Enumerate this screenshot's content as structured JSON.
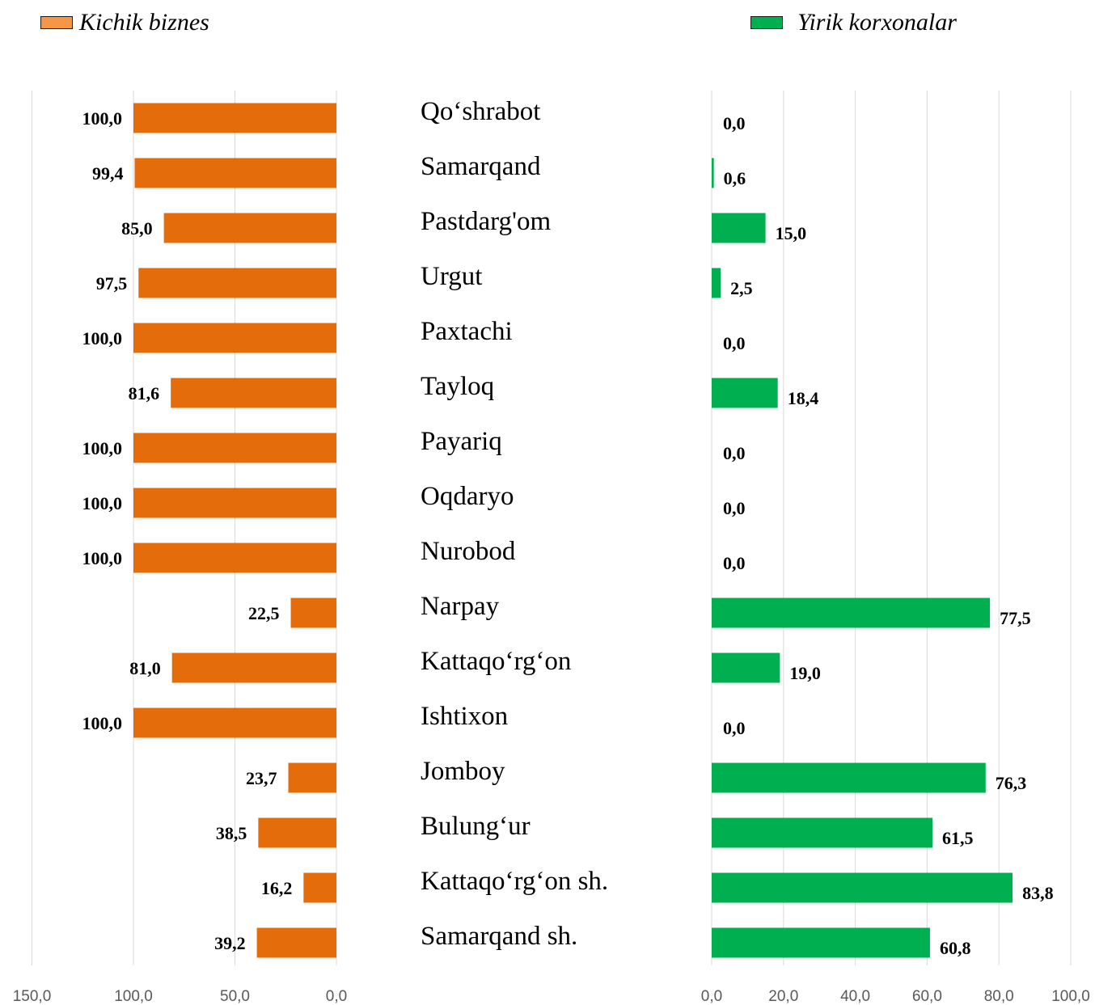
{
  "chart_data": {
    "type": "bar",
    "categories": [
      "Qo‘shrabot",
      "Samarqand",
      "Pastdarg'om",
      "Urgut",
      "Paxtachi",
      "Tayloq",
      "Payariq",
      "Oqdaryo",
      "Nurobod",
      "Narpay",
      "Kattaqo‘rg‘on",
      "Ishtixon",
      "Jomboy",
      "Bulung‘ur",
      "Kattaqo‘rg‘on sh.",
      "Samarqand sh."
    ],
    "series": [
      {
        "name": "Kichik biznes",
        "color": "#E46C0A",
        "swatch_color": "#F79646",
        "values": [
          100.0,
          99.4,
          85.0,
          97.5,
          100.0,
          81.6,
          100.0,
          100.0,
          100.0,
          22.5,
          81.0,
          100.0,
          23.7,
          38.5,
          16.2,
          39.2
        ],
        "labels": [
          "100,0",
          "99,4",
          "85,0",
          "97,5",
          "100,0",
          "81,6",
          "100,0",
          "100,0",
          "100,0",
          "22,5",
          "81,0",
          "100,0",
          "23,7",
          "38,5",
          "16,2",
          "39,2"
        ],
        "xlim": [
          0,
          150
        ],
        "direction": "reversed",
        "ticks": [
          "150,0",
          "100,0",
          "50,0",
          "0,0"
        ]
      },
      {
        "name": "Yirik korxonalar",
        "color": "#00B050",
        "swatch_color": "#00B050",
        "values": [
          0.0,
          0.6,
          15.0,
          2.5,
          0.0,
          18.4,
          0.0,
          0.0,
          0.0,
          77.5,
          19.0,
          0.0,
          76.3,
          61.5,
          83.8,
          60.8
        ],
        "labels": [
          "0,0",
          "0,6",
          "15,0",
          "2,5",
          "0,0",
          "18,4",
          "0,0",
          "0,0",
          "0,0",
          "77,5",
          "19,0",
          "0,0",
          "76,3",
          "61,5",
          "83,8",
          "60,8"
        ],
        "xlim": [
          0,
          100
        ],
        "direction": "normal",
        "ticks": [
          "0,0",
          "20,0",
          "40,0",
          "60,0",
          "80,0",
          "100,0"
        ]
      }
    ],
    "grid": true,
    "legend": "top"
  }
}
